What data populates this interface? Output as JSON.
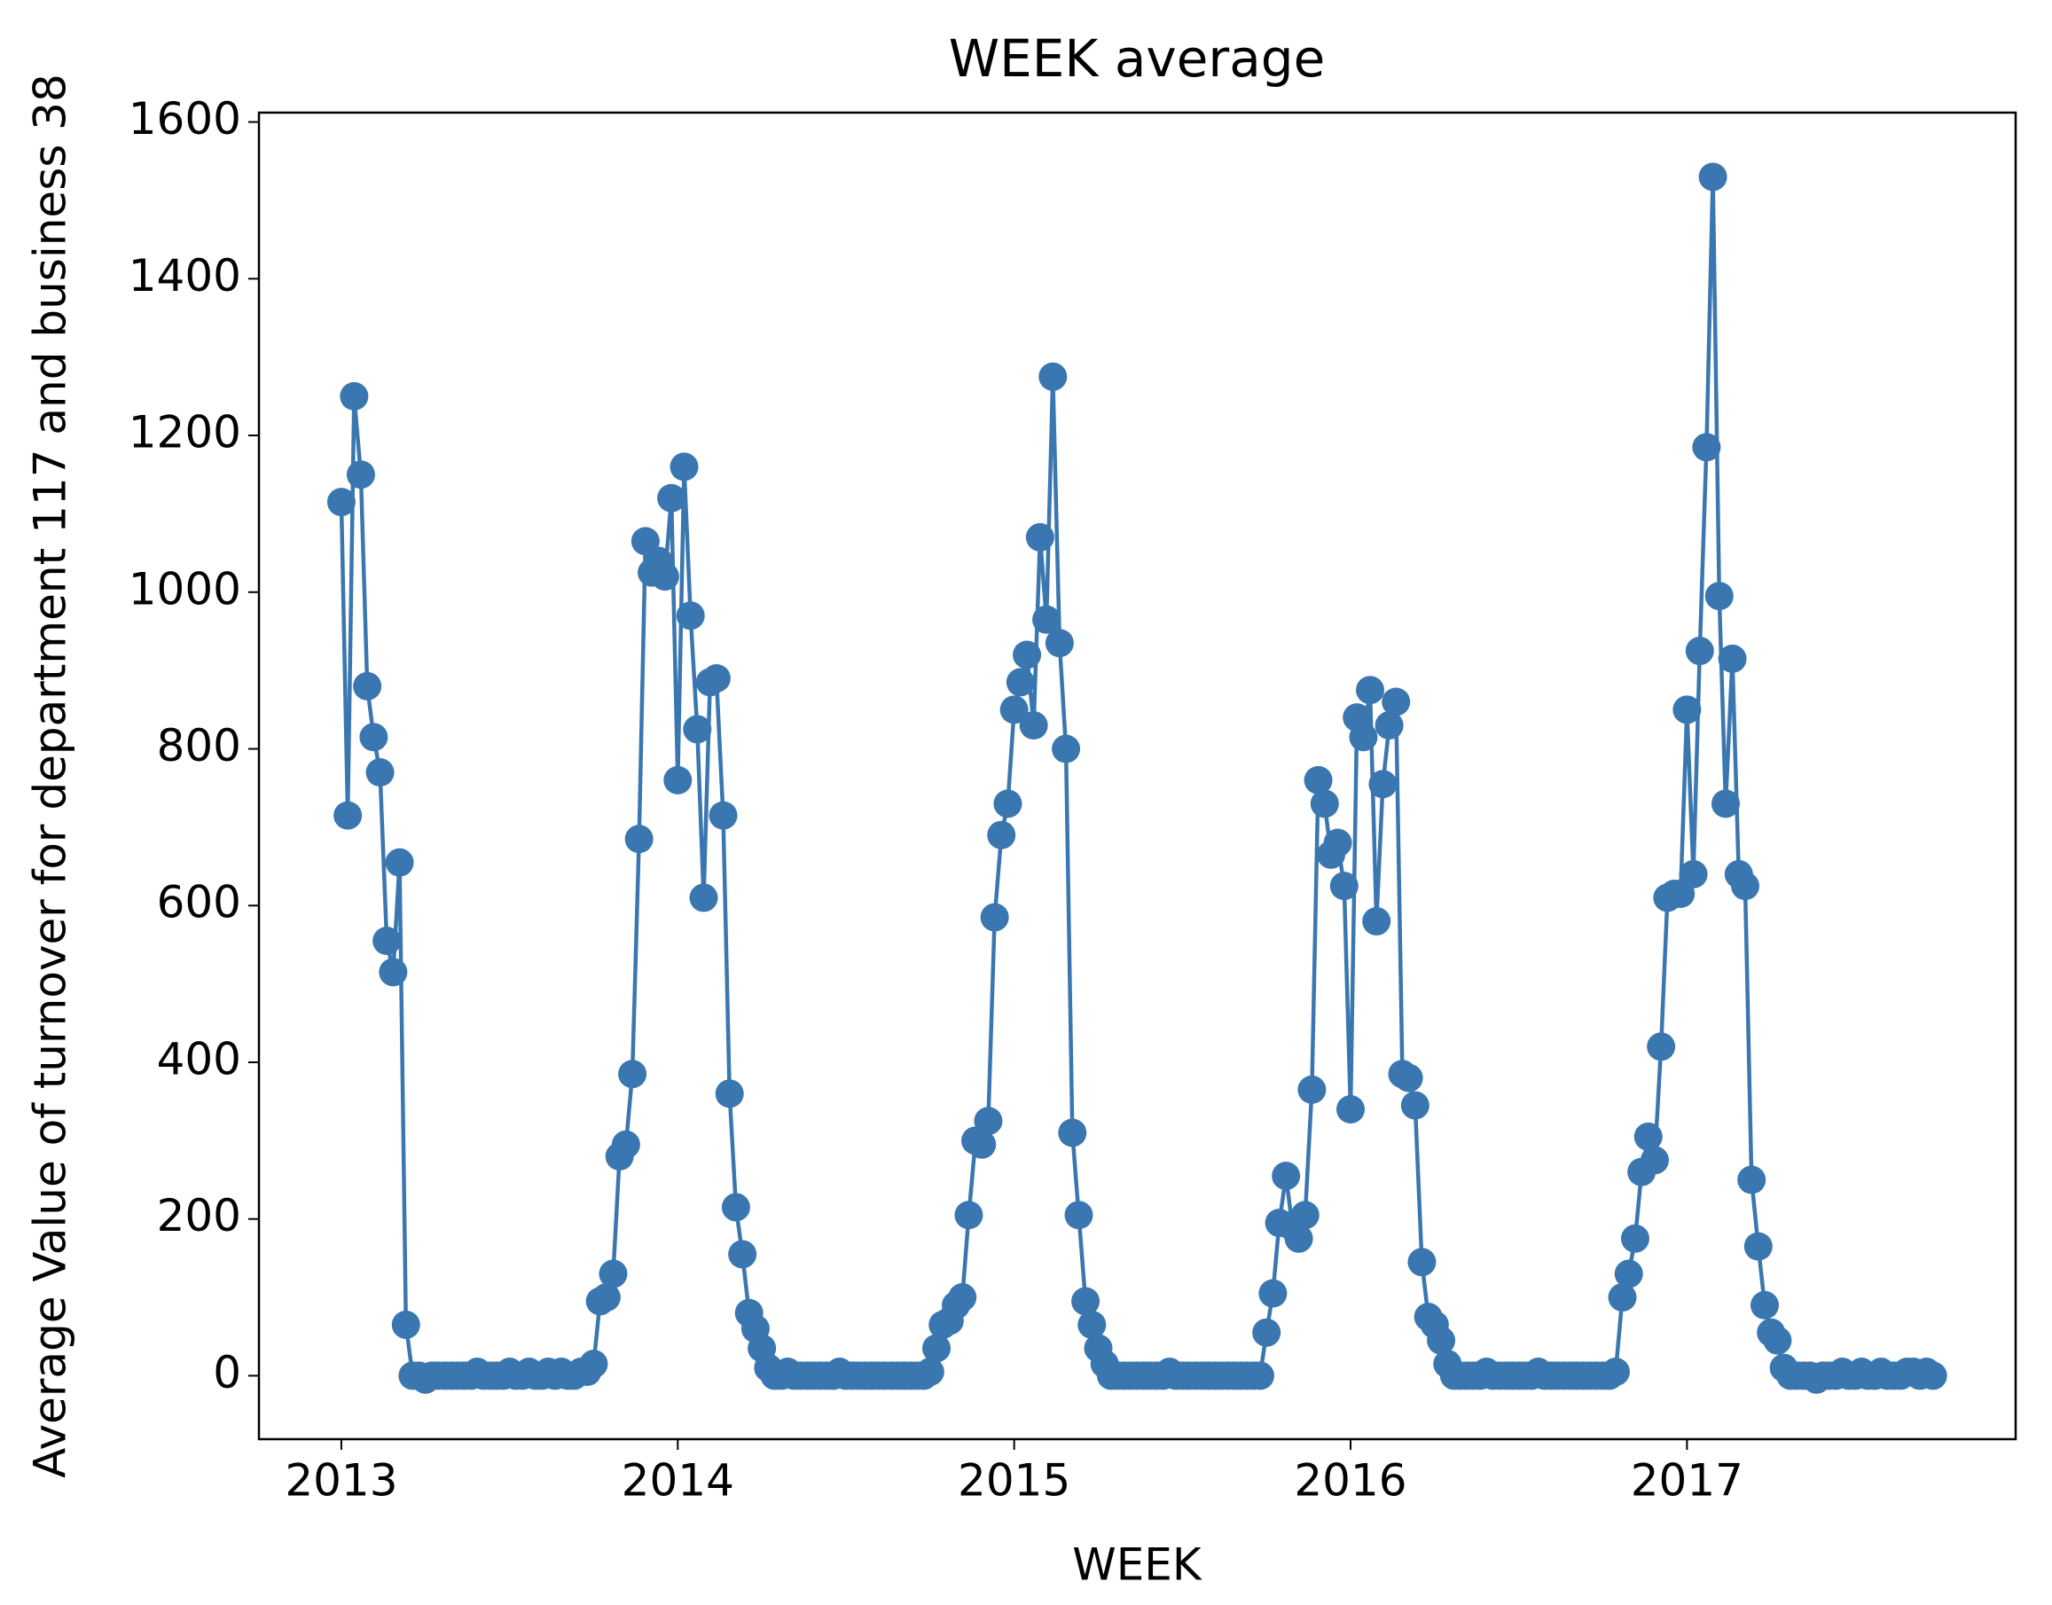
{
  "chart_data": {
    "type": "line",
    "title": "WEEK average",
    "x_label": "WEEK",
    "y_label": "Average Value of turnover for department 117 and business 38",
    "x": [
      2013,
      2013.019,
      2013.038,
      2013.058,
      2013.077,
      2013.096,
      2013.115,
      2013.135,
      2013.154,
      2013.173,
      2013.192,
      2013.212,
      2013.231,
      2013.25,
      2013.269,
      2013.288,
      2013.308,
      2013.327,
      2013.346,
      2013.365,
      2013.385,
      2013.404,
      2013.423,
      2013.442,
      2013.462,
      2013.481,
      2013.5,
      2013.519,
      2013.538,
      2013.558,
      2013.577,
      2013.596,
      2013.615,
      2013.635,
      2013.654,
      2013.673,
      2013.692,
      2013.712,
      2013.731,
      2013.75,
      2013.769,
      2013.788,
      2013.808,
      2013.827,
      2013.846,
      2013.865,
      2013.885,
      2013.904,
      2013.923,
      2013.942,
      2013.962,
      2013.981,
      2014,
      2014.019,
      2014.038,
      2014.058,
      2014.077,
      2014.096,
      2014.115,
      2014.135,
      2014.154,
      2014.173,
      2014.192,
      2014.212,
      2014.231,
      2014.25,
      2014.269,
      2014.288,
      2014.308,
      2014.327,
      2014.346,
      2014.365,
      2014.385,
      2014.404,
      2014.423,
      2014.442,
      2014.462,
      2014.481,
      2014.5,
      2014.519,
      2014.538,
      2014.558,
      2014.577,
      2014.596,
      2014.615,
      2014.635,
      2014.654,
      2014.673,
      2014.692,
      2014.712,
      2014.731,
      2014.75,
      2014.769,
      2014.788,
      2014.808,
      2014.827,
      2014.846,
      2014.865,
      2014.885,
      2014.904,
      2014.923,
      2014.942,
      2014.962,
      2014.981,
      2015,
      2015.019,
      2015.038,
      2015.058,
      2015.077,
      2015.096,
      2015.115,
      2015.135,
      2015.154,
      2015.173,
      2015.192,
      2015.212,
      2015.231,
      2015.25,
      2015.269,
      2015.288,
      2015.308,
      2015.327,
      2015.346,
      2015.365,
      2015.385,
      2015.404,
      2015.423,
      2015.442,
      2015.462,
      2015.481,
      2015.5,
      2015.519,
      2015.538,
      2015.558,
      2015.577,
      2015.596,
      2015.615,
      2015.635,
      2015.654,
      2015.673,
      2015.692,
      2015.712,
      2015.731,
      2015.75,
      2015.769,
      2015.788,
      2015.808,
      2015.827,
      2015.846,
      2015.865,
      2015.885,
      2015.904,
      2015.923,
      2015.942,
      2015.962,
      2015.981,
      2016,
      2016.019,
      2016.038,
      2016.058,
      2016.077,
      2016.096,
      2016.115,
      2016.135,
      2016.154,
      2016.173,
      2016.192,
      2016.212,
      2016.231,
      2016.25,
      2016.269,
      2016.288,
      2016.308,
      2016.327,
      2016.346,
      2016.365,
      2016.385,
      2016.404,
      2016.423,
      2016.442,
      2016.462,
      2016.481,
      2016.5,
      2016.519,
      2016.538,
      2016.558,
      2016.577,
      2016.596,
      2016.615,
      2016.635,
      2016.654,
      2016.673,
      2016.692,
      2016.712,
      2016.731,
      2016.75,
      2016.769,
      2016.788,
      2016.808,
      2016.827,
      2016.846,
      2016.865,
      2016.885,
      2016.904,
      2016.923,
      2016.942,
      2016.962,
      2016.981,
      2017,
      2017.019,
      2017.038,
      2017.058,
      2017.077,
      2017.096,
      2017.115,
      2017.135,
      2017.154,
      2017.173,
      2017.192,
      2017.212,
      2017.231,
      2017.25,
      2017.269,
      2017.288,
      2017.308,
      2017.327,
      2017.346,
      2017.365,
      2017.385,
      2017.404,
      2017.423,
      2017.442,
      2017.462,
      2017.481,
      2017.5,
      2017.519,
      2017.538,
      2017.558,
      2017.577,
      2017.596,
      2017.615,
      2017.635,
      2017.654,
      2017.673,
      2017.692,
      2017.712,
      2017.731
    ],
    "series": [
      {
        "color": "#3a76af",
        "values": [
          1115,
          715,
          1250,
          1150,
          880,
          815,
          770,
          555,
          515,
          655,
          65,
          0,
          0,
          -5,
          0,
          0,
          0,
          0,
          0,
          0,
          0,
          5,
          0,
          0,
          0,
          0,
          5,
          0,
          0,
          5,
          0,
          0,
          5,
          0,
          5,
          0,
          0,
          5,
          5,
          15,
          95,
          100,
          130,
          280,
          295,
          385,
          685,
          1065,
          1025,
          1040,
          1020,
          1120,
          760,
          1160,
          970,
          825,
          610,
          885,
          890,
          715,
          360,
          215,
          155,
          80,
          60,
          35,
          10,
          0,
          0,
          5,
          0,
          0,
          0,
          0,
          0,
          0,
          0,
          5,
          0,
          0,
          0,
          0,
          0,
          0,
          0,
          0,
          0,
          0,
          0,
          0,
          0,
          5,
          35,
          65,
          70,
          90,
          100,
          205,
          300,
          295,
          325,
          585,
          690,
          730,
          850,
          885,
          920,
          830,
          1070,
          965,
          1275,
          935,
          800,
          310,
          205,
          95,
          65,
          35,
          15,
          0,
          0,
          0,
          0,
          0,
          0,
          0,
          0,
          0,
          5,
          0,
          0,
          0,
          0,
          0,
          0,
          0,
          0,
          0,
          0,
          0,
          0,
          0,
          0,
          55,
          105,
          195,
          255,
          190,
          175,
          205,
          365,
          760,
          730,
          665,
          680,
          625,
          340,
          840,
          815,
          875,
          580,
          755,
          830,
          860,
          385,
          380,
          345,
          145,
          75,
          65,
          45,
          15,
          0,
          0,
          0,
          0,
          0,
          5,
          0,
          0,
          0,
          0,
          0,
          0,
          0,
          5,
          0,
          0,
          0,
          0,
          0,
          0,
          0,
          0,
          0,
          0,
          0,
          5,
          100,
          130,
          175,
          260,
          305,
          275,
          420,
          610,
          615,
          615,
          850,
          640,
          925,
          1185,
          1530,
          995,
          730,
          915,
          640,
          625,
          250,
          165,
          90,
          55,
          45,
          10,
          0,
          0,
          0,
          0,
          -5,
          0,
          0,
          0,
          5,
          0,
          0,
          5,
          0,
          0,
          5,
          0,
          0,
          0,
          5,
          5,
          0,
          5,
          0
        ]
      }
    ],
    "xlim": [
      2012.755,
      2017.977
    ],
    "ylim": [
      -81,
      1612
    ],
    "xticks": [
      2013,
      2014,
      2015,
      2016,
      2017
    ],
    "yticks": [
      0,
      200,
      400,
      600,
      800,
      1000,
      1200,
      1400,
      1600
    ]
  }
}
